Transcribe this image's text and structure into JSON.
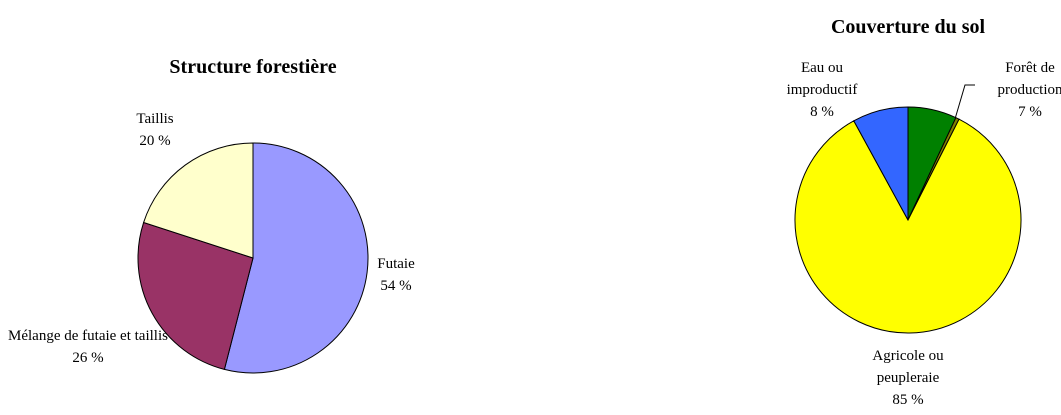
{
  "chart_data": [
    {
      "type": "pie",
      "title": "Structure forestière",
      "categories": [
        "Futaie",
        "Mélange de futaie et taillis",
        "Taillis"
      ],
      "values": [
        54,
        26,
        20
      ],
      "value_labels": [
        "54 %",
        "26 %",
        "20 %"
      ],
      "colors": [
        "#9999ff",
        "#993366",
        "#ffffcc"
      ]
    },
    {
      "type": "pie",
      "title": "Couverture du sol",
      "categories": [
        "Forêt de production",
        null,
        "Agricole ou peupleraie",
        "Eau ou improductif"
      ],
      "values": [
        7,
        0.5,
        85,
        8
      ],
      "value_labels": [
        "7 %",
        null,
        "85 %",
        "8 %"
      ],
      "colors": [
        "#008000",
        "#808000",
        "#ffff00",
        "#3366ff"
      ]
    }
  ]
}
